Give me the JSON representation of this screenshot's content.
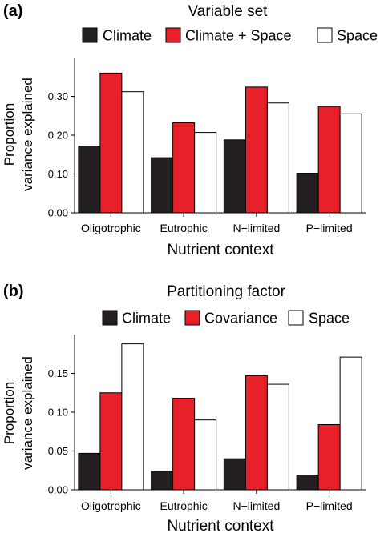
{
  "chart_data": [
    {
      "panel_label": "(a)",
      "type": "bar",
      "legend_title": "Variable set",
      "legend_position": "top",
      "categories": [
        "Oligotrophic",
        "Eutrophic",
        "N−limited",
        "P−limited"
      ],
      "series": [
        {
          "name": "Climate",
          "color": "#231f20",
          "values": [
            0.172,
            0.142,
            0.188,
            0.102
          ]
        },
        {
          "name": "Climate + Space",
          "color": "#e8202a",
          "values": [
            0.36,
            0.232,
            0.324,
            0.274
          ]
        },
        {
          "name": "Space",
          "color": "#ffffff",
          "values": [
            0.312,
            0.207,
            0.283,
            0.255
          ]
        }
      ],
      "xlabel": "Nutrient context",
      "ylabel": [
        "Proportion",
        "variance explained"
      ],
      "ylim": [
        0,
        0.4
      ],
      "yticks": [
        0.0,
        0.1,
        0.2,
        0.3
      ],
      "ytick_labels": [
        "0.00",
        "0.10",
        "0.20",
        "0.30"
      ],
      "grid": false
    },
    {
      "panel_label": "(b)",
      "type": "bar",
      "legend_title": "Partitioning factor",
      "legend_position": "top",
      "categories": [
        "Oligotrophic",
        "Eutrophic",
        "N−limited",
        "P−limited"
      ],
      "series": [
        {
          "name": "Climate",
          "color": "#231f20",
          "values": [
            0.047,
            0.024,
            0.04,
            0.019
          ]
        },
        {
          "name": "Covariance",
          "color": "#e8202a",
          "values": [
            0.125,
            0.118,
            0.147,
            0.084
          ]
        },
        {
          "name": "Space",
          "color": "#ffffff",
          "values": [
            0.188,
            0.09,
            0.136,
            0.171
          ]
        }
      ],
      "xlabel": "Nutrient context",
      "ylabel": [
        "Proportion",
        "variance explained"
      ],
      "ylim": [
        0,
        0.2
      ],
      "yticks": [
        0.0,
        0.05,
        0.1,
        0.15
      ],
      "ytick_labels": [
        "0.00",
        "0.05",
        "0.10",
        "0.15"
      ],
      "grid": false
    }
  ]
}
